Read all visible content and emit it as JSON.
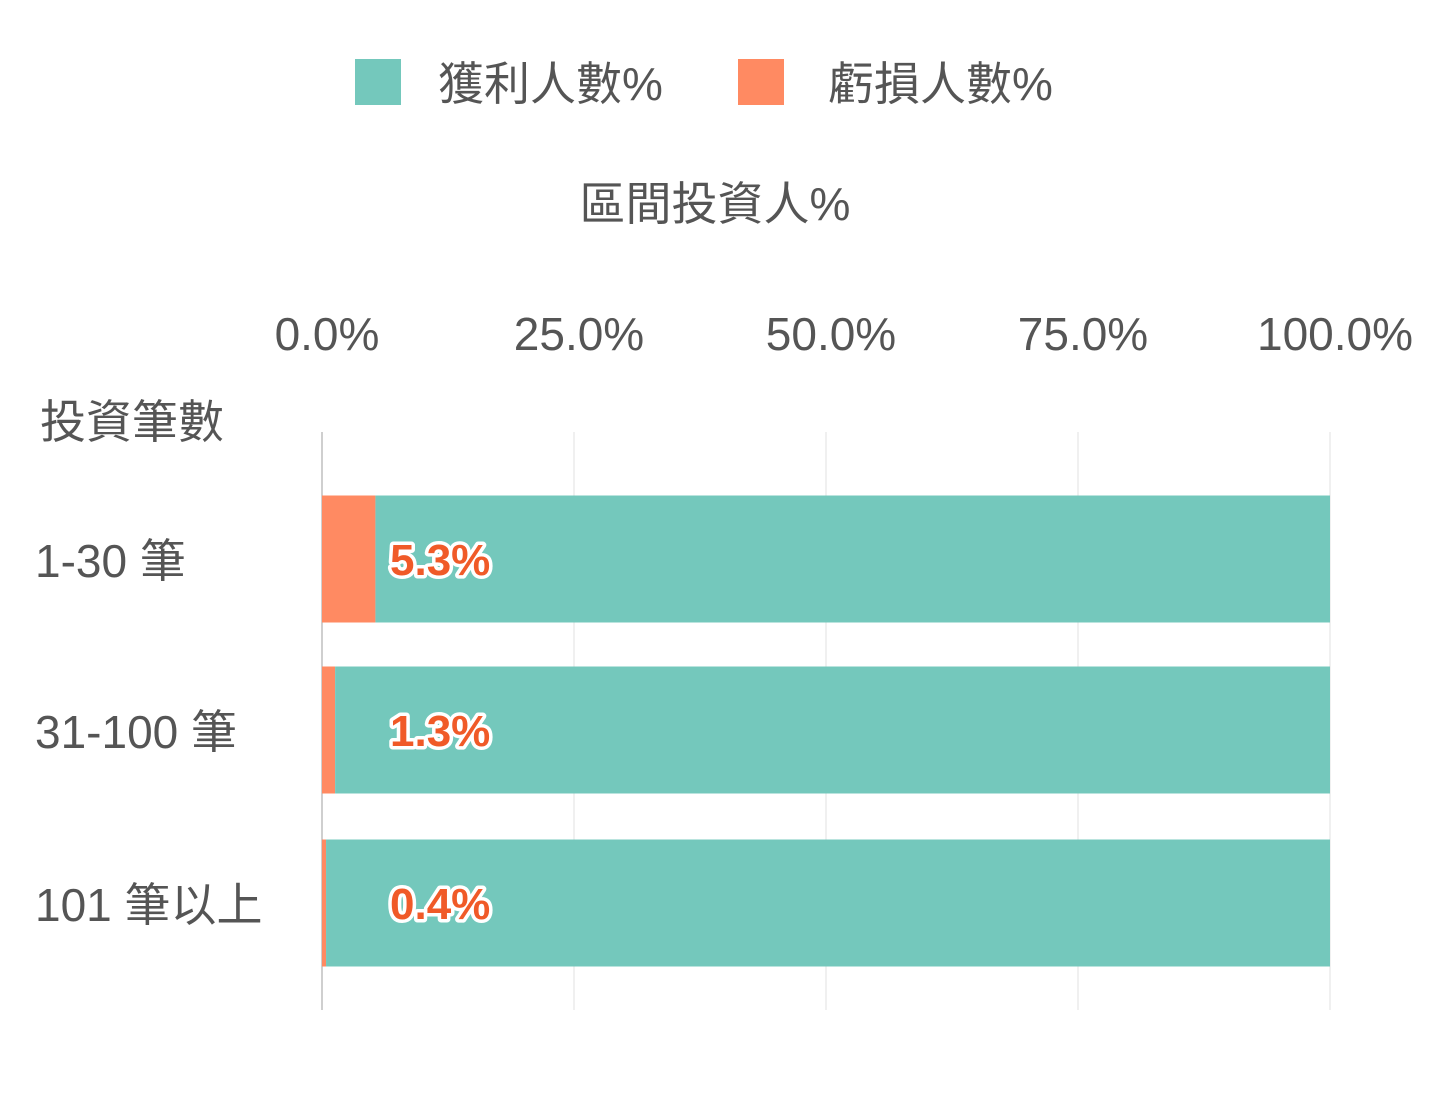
{
  "chart_data": {
    "type": "bar",
    "orientation": "horizontal",
    "stacked": true,
    "xlabel": "區間投資人%",
    "ylabel": "投資筆數",
    "xlim": [
      0,
      100
    ],
    "x_ticks": [
      "0.0%",
      "25.0%",
      "50.0%",
      "75.0%",
      "100.0%"
    ],
    "x_tick_values": [
      0,
      25,
      50,
      75,
      100
    ],
    "grid": true,
    "legend_position": "top",
    "categories": [
      "1-30 筆",
      "31-100 筆",
      "101 筆以上"
    ],
    "series": [
      {
        "name": "虧損人數%",
        "color": "#FF8A62",
        "values": [
          5.3,
          1.3,
          0.4
        ]
      },
      {
        "name": "獲利人數%",
        "color": "#74C8BC",
        "values": [
          94.7,
          98.7,
          99.6
        ]
      }
    ],
    "data_labels": [
      "5.3%",
      "1.3%",
      "0.4%"
    ],
    "data_label_color": "#F05A28"
  }
}
